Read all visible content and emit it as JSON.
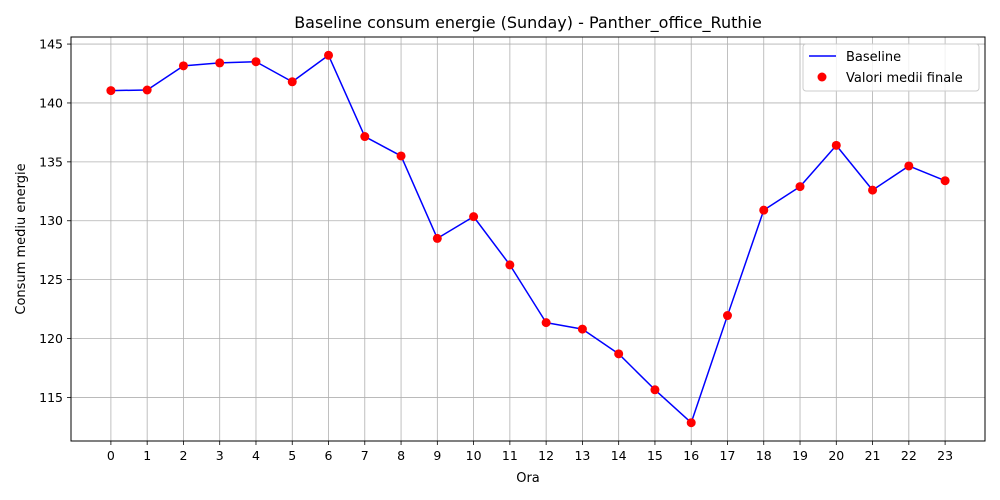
{
  "chart_data": {
    "type": "line",
    "title": "Baseline consum energie (Sunday) - Panther_office_Ruthie",
    "xlabel": "Ora",
    "ylabel": "Consum mediu energie",
    "x": [
      0,
      1,
      2,
      3,
      4,
      5,
      6,
      7,
      8,
      9,
      10,
      11,
      12,
      13,
      14,
      15,
      16,
      17,
      18,
      19,
      20,
      21,
      22,
      23
    ],
    "xlim": [
      -1.1,
      24.1
    ],
    "ylim": [
      111.3,
      145.6
    ],
    "yticks": [
      115,
      120,
      125,
      130,
      135,
      140,
      145
    ],
    "grid": true,
    "legend_position": "top-right",
    "series": [
      {
        "name": "Baseline",
        "kind": "line",
        "color": "#0000ff",
        "values": [
          141.05,
          141.1,
          143.15,
          143.4,
          143.5,
          141.8,
          144.05,
          137.15,
          135.5,
          128.5,
          130.35,
          126.25,
          121.35,
          120.8,
          118.7,
          115.65,
          112.85,
          121.95,
          130.9,
          132.9,
          136.4,
          132.6,
          134.65,
          133.4
        ]
      },
      {
        "name": "Valori medii finale",
        "kind": "scatter",
        "color": "#ff0000",
        "values": [
          141.05,
          141.1,
          143.15,
          143.4,
          143.5,
          141.8,
          144.05,
          137.15,
          135.5,
          128.5,
          130.35,
          126.25,
          121.35,
          120.8,
          118.7,
          115.65,
          112.85,
          121.95,
          130.9,
          132.9,
          136.4,
          132.6,
          134.65,
          133.4
        ]
      }
    ]
  }
}
